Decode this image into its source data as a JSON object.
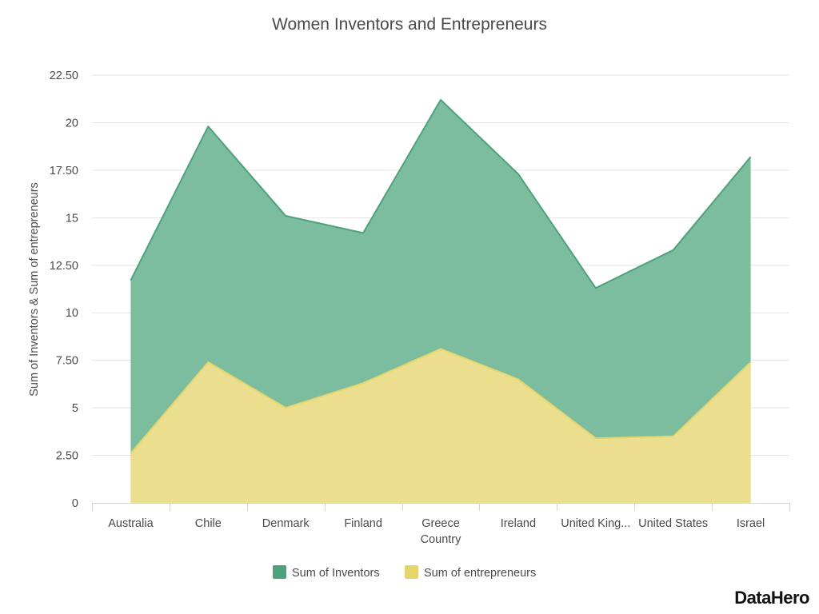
{
  "chart_data": {
    "type": "area",
    "title": "Women Inventors and Entrepreneurs",
    "xlabel": "Country",
    "ylabel": "Sum of Inventors & Sum of entrepreneurs",
    "categories": [
      "Australia",
      "Chile",
      "Denmark",
      "Finland",
      "Greece",
      "Ireland",
      "United King...",
      "United States",
      "Israel"
    ],
    "series": [
      {
        "name": "Sum of Inventors",
        "color": "#4ea27b",
        "fill": "#7bbd9e",
        "values": [
          11.7,
          19.8,
          15.1,
          14.2,
          21.2,
          17.3,
          11.3,
          13.3,
          18.2
        ]
      },
      {
        "name": "Sum of entrepreneurs",
        "color": "#e6d56b",
        "fill": "#ebdf8f",
        "values": [
          2.6,
          7.4,
          5.0,
          6.3,
          8.1,
          6.5,
          3.4,
          3.5,
          7.4
        ]
      }
    ],
    "ylim": [
      0,
      22.5
    ],
    "yticks": [
      "0",
      "2.50",
      "5",
      "7.50",
      "10",
      "12.50",
      "15",
      "17.50",
      "20",
      "22.50"
    ],
    "grid": true,
    "legend_position": "bottom-center"
  },
  "branding": {
    "logo": "DataHero"
  }
}
